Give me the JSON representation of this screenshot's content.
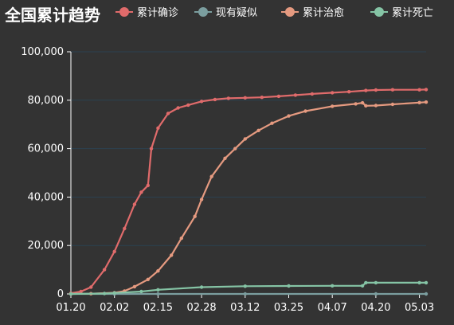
{
  "chart_data": {
    "type": "line",
    "title": "全国累计趋势",
    "xlabel": "",
    "ylabel": "",
    "ylim": [
      0,
      100000
    ],
    "y_ticks": [
      0,
      20000,
      40000,
      60000,
      80000,
      100000
    ],
    "y_tick_labels": [
      "0",
      "20,000",
      "40,000",
      "60,000",
      "80,000",
      "100,000"
    ],
    "x_tick_labels": [
      "01.20",
      "02.02",
      "02.15",
      "02.28",
      "03.12",
      "03.25",
      "04.07",
      "04.20",
      "05.03"
    ],
    "x_start": "01.20",
    "x_end": "05.05",
    "grid": true,
    "legend_position": "top-right",
    "series": [
      {
        "name": "累计确诊",
        "color": "#e06b6b",
        "x": [
          "01.20",
          "01.23",
          "01.26",
          "01.30",
          "02.02",
          "02.05",
          "02.08",
          "02.10",
          "02.12",
          "02.13",
          "02.15",
          "02.18",
          "02.21",
          "02.24",
          "02.28",
          "03.03",
          "03.07",
          "03.12",
          "03.17",
          "03.22",
          "03.27",
          "04.01",
          "04.07",
          "04.12",
          "04.17",
          "04.20",
          "04.25",
          "05.03",
          "05.05"
        ],
        "values": [
          300,
          1000,
          2800,
          10000,
          17500,
          27000,
          37000,
          42000,
          44800,
          60000,
          68500,
          74500,
          76800,
          78000,
          79500,
          80300,
          80800,
          81000,
          81200,
          81600,
          82100,
          82600,
          83100,
          83500,
          84000,
          84200,
          84300,
          84300,
          84400
        ]
      },
      {
        "name": "现有疑似",
        "color": "#7b9e9f",
        "x": [
          "01.20",
          "02.02",
          "02.15",
          "03.12",
          "04.20",
          "05.05"
        ],
        "values": [
          0,
          0,
          0,
          0,
          0,
          0
        ]
      },
      {
        "name": "累计治愈",
        "color": "#e59a80",
        "x": [
          "01.20",
          "01.26",
          "02.02",
          "02.05",
          "02.08",
          "02.12",
          "02.15",
          "02.19",
          "02.22",
          "02.26",
          "02.28",
          "03.02",
          "03.06",
          "03.09",
          "03.12",
          "03.16",
          "03.20",
          "03.25",
          "03.30",
          "04.07",
          "04.14",
          "04.16",
          "04.17",
          "04.20",
          "04.25",
          "05.03",
          "05.05"
        ],
        "values": [
          0,
          100,
          500,
          1200,
          3000,
          6000,
          9500,
          16000,
          23000,
          32000,
          39000,
          48500,
          56000,
          60000,
          64000,
          67500,
          70500,
          73500,
          75500,
          77500,
          78500,
          78900,
          77700,
          77800,
          78300,
          79000,
          79200
        ]
      },
      {
        "name": "累计死亡",
        "color": "#85c4a5",
        "x": [
          "01.20",
          "01.30",
          "02.02",
          "02.10",
          "02.15",
          "02.28",
          "03.12",
          "03.25",
          "04.07",
          "04.16",
          "04.17",
          "04.20",
          "05.03",
          "05.05"
        ],
        "values": [
          0,
          170,
          400,
          1000,
          1700,
          2800,
          3200,
          3300,
          3340,
          3350,
          4630,
          4640,
          4640,
          4640
        ]
      }
    ]
  }
}
